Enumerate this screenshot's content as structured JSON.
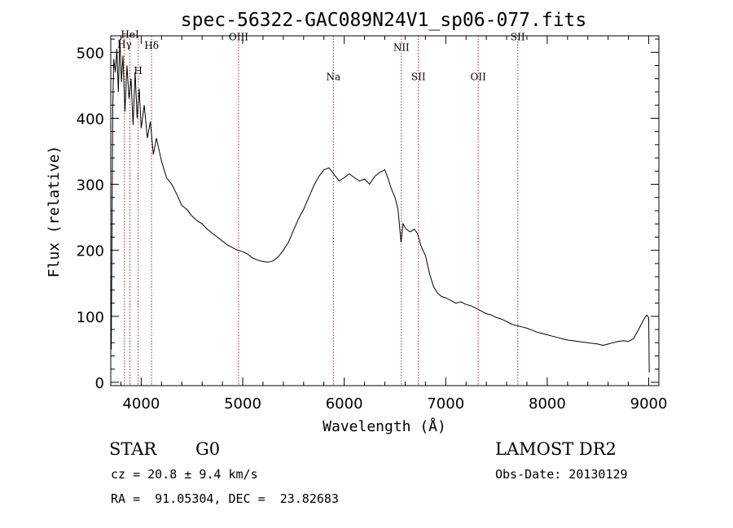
{
  "chart_data": {
    "type": "line",
    "title": "spec-56322-GAC089N24V1_sp06-077.fits",
    "xlabel": "Wavelength (Å)",
    "ylabel": "Flux (relative)",
    "xlim": [
      3700,
      9100
    ],
    "ylim": [
      -5,
      525
    ],
    "xticks": [
      4000,
      5000,
      6000,
      7000,
      8000,
      9000
    ],
    "yticks": [
      0,
      100,
      200,
      300,
      400,
      500
    ],
    "grid": false,
    "colors": {
      "line": "#000000",
      "marker_lines": "#b22222"
    },
    "spectrum_points": [
      [
        3705,
        50
      ],
      [
        3712,
        230
      ],
      [
        3720,
        420
      ],
      [
        3730,
        490
      ],
      [
        3745,
        470
      ],
      [
        3760,
        505
      ],
      [
        3775,
        440
      ],
      [
        3790,
        520
      ],
      [
        3805,
        455
      ],
      [
        3820,
        495
      ],
      [
        3840,
        410
      ],
      [
        3860,
        480
      ],
      [
        3880,
        430
      ],
      [
        3900,
        460
      ],
      [
        3920,
        390
      ],
      [
        3940,
        470
      ],
      [
        3960,
        400
      ],
      [
        3980,
        445
      ],
      [
        4000,
        385
      ],
      [
        4030,
        420
      ],
      [
        4060,
        370
      ],
      [
        4090,
        395
      ],
      [
        4120,
        345
      ],
      [
        4150,
        370
      ],
      [
        4200,
        335
      ],
      [
        4250,
        310
      ],
      [
        4300,
        300
      ],
      [
        4350,
        285
      ],
      [
        4400,
        268
      ],
      [
        4450,
        262
      ],
      [
        4500,
        252
      ],
      [
        4550,
        245
      ],
      [
        4600,
        240
      ],
      [
        4650,
        232
      ],
      [
        4700,
        226
      ],
      [
        4750,
        220
      ],
      [
        4800,
        214
      ],
      [
        4850,
        208
      ],
      [
        4900,
        204
      ],
      [
        4950,
        200
      ],
      [
        5000,
        198
      ],
      [
        5050,
        194
      ],
      [
        5100,
        188
      ],
      [
        5150,
        185
      ],
      [
        5200,
        183
      ],
      [
        5250,
        182
      ],
      [
        5300,
        184
      ],
      [
        5350,
        190
      ],
      [
        5400,
        200
      ],
      [
        5450,
        212
      ],
      [
        5500,
        230
      ],
      [
        5550,
        248
      ],
      [
        5600,
        262
      ],
      [
        5650,
        280
      ],
      [
        5700,
        298
      ],
      [
        5750,
        312
      ],
      [
        5800,
        322
      ],
      [
        5850,
        325
      ],
      [
        5900,
        315
      ],
      [
        5950,
        305
      ],
      [
        6000,
        310
      ],
      [
        6050,
        316
      ],
      [
        6100,
        310
      ],
      [
        6150,
        305
      ],
      [
        6200,
        308
      ],
      [
        6250,
        300
      ],
      [
        6300,
        312
      ],
      [
        6350,
        318
      ],
      [
        6400,
        322
      ],
      [
        6430,
        310
      ],
      [
        6460,
        295
      ],
      [
        6500,
        280
      ],
      [
        6530,
        262
      ],
      [
        6560,
        212
      ],
      [
        6580,
        240
      ],
      [
        6610,
        232
      ],
      [
        6650,
        228
      ],
      [
        6690,
        232
      ],
      [
        6720,
        226
      ],
      [
        6760,
        205
      ],
      [
        6800,
        192
      ],
      [
        6840,
        165
      ],
      [
        6880,
        145
      ],
      [
        6920,
        135
      ],
      [
        6960,
        130
      ],
      [
        7000,
        128
      ],
      [
        7050,
        124
      ],
      [
        7100,
        120
      ],
      [
        7150,
        122
      ],
      [
        7200,
        118
      ],
      [
        7250,
        116
      ],
      [
        7300,
        112
      ],
      [
        7350,
        108
      ],
      [
        7400,
        104
      ],
      [
        7450,
        102
      ],
      [
        7500,
        98
      ],
      [
        7550,
        96
      ],
      [
        7600,
        92
      ],
      [
        7650,
        88
      ],
      [
        7700,
        86
      ],
      [
        7750,
        84
      ],
      [
        7800,
        82
      ],
      [
        7850,
        79
      ],
      [
        7900,
        76
      ],
      [
        7950,
        74
      ],
      [
        8000,
        72
      ],
      [
        8050,
        70
      ],
      [
        8100,
        68
      ],
      [
        8150,
        66
      ],
      [
        8200,
        64
      ],
      [
        8250,
        63
      ],
      [
        8300,
        62
      ],
      [
        8350,
        61
      ],
      [
        8400,
        60
      ],
      [
        8450,
        59
      ],
      [
        8500,
        58
      ],
      [
        8550,
        56
      ],
      [
        8600,
        58
      ],
      [
        8650,
        60
      ],
      [
        8700,
        62
      ],
      [
        8750,
        63
      ],
      [
        8800,
        62
      ],
      [
        8850,
        66
      ],
      [
        8900,
        80
      ],
      [
        8950,
        95
      ],
      [
        8980,
        102
      ],
      [
        9000,
        98
      ],
      [
        9005,
        15
      ]
    ],
    "line_markers": [
      {
        "label": "Hγ",
        "x": 3835,
        "label_y": 507
      },
      {
        "label": "HeI",
        "x": 3889,
        "label_y": 522
      },
      {
        "label": "H",
        "x": 3970,
        "label_y": 467
      },
      {
        "label": "Hδ",
        "x": 4102,
        "label_y": 505
      },
      {
        "label": "OIII",
        "x": 4959,
        "label_y": 518
      },
      {
        "label": "Na",
        "x": 5893,
        "label_y": 458
      },
      {
        "label": "NII",
        "x": 6563,
        "label_y": 502
      },
      {
        "label": "SII",
        "x": 6731,
        "label_y": 458
      },
      {
        "label": "OII",
        "x": 7320,
        "label_y": 458
      },
      {
        "label": "SII",
        "x": 7710,
        "label_y": 518
      }
    ]
  },
  "info": {
    "class_label": "STAR",
    "subclass": "G0",
    "survey": "LAMOST DR2",
    "cz": "cz = 20.8 ± 9.4 km/s",
    "obs_date": "Obs-Date: 20130129",
    "coords": "RA =  91.05304, DEC =  23.82683"
  }
}
